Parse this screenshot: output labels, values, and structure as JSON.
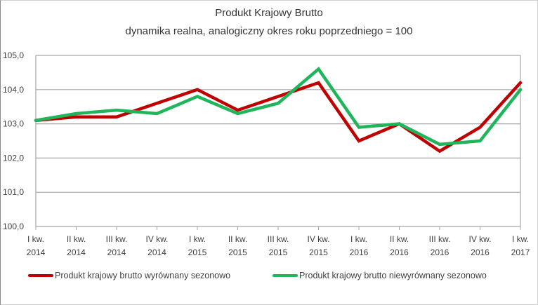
{
  "chart_data": {
    "type": "line",
    "title": "Produkt Krajowy Brutto",
    "subtitle": "dynamika realna, analogiczny okres roku poprzedniego = 100",
    "xlabel": "",
    "ylabel": "",
    "ylim": [
      100,
      105
    ],
    "yticks": [
      "100,0",
      "101,0",
      "102,0",
      "103,0",
      "104,0",
      "105,0"
    ],
    "grid": true,
    "legend_position": "bottom",
    "categories": [
      [
        "I kw.",
        "2014"
      ],
      [
        "II kw.",
        "2014"
      ],
      [
        "III kw.",
        "2014"
      ],
      [
        "IV kw.",
        "2014"
      ],
      [
        "I kw.",
        "2015"
      ],
      [
        "II kw.",
        "2015"
      ],
      [
        "III kw.",
        "2015"
      ],
      [
        "IV kw.",
        "2015"
      ],
      [
        "I kw.",
        "2016"
      ],
      [
        "II kw.",
        "2016"
      ],
      [
        "III kw.",
        "2016"
      ],
      [
        "IV kw.",
        "2016"
      ],
      [
        "I kw.",
        "2017"
      ]
    ],
    "series": [
      {
        "name": "Produkt krajowy brutto wyrównany sezonowo",
        "color": "#c00000",
        "values": [
          103.1,
          103.2,
          103.2,
          103.6,
          104.0,
          103.4,
          103.8,
          104.2,
          102.5,
          103.0,
          102.2,
          102.9,
          104.2
        ]
      },
      {
        "name": "Produkt krajowy brutto niewyrównany sezonowo",
        "color": "#1fb55a",
        "values": [
          103.1,
          103.3,
          103.4,
          103.3,
          103.8,
          103.3,
          103.6,
          104.6,
          102.9,
          103.0,
          102.4,
          102.5,
          104.0
        ]
      }
    ]
  }
}
